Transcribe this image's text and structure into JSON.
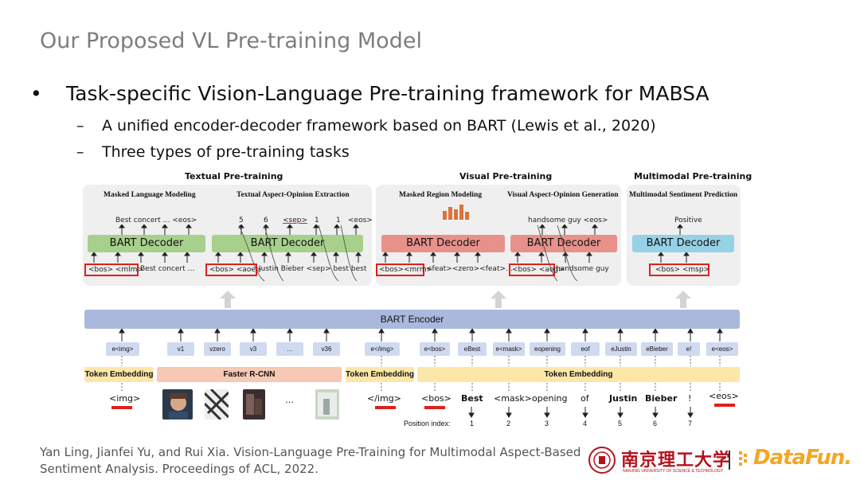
{
  "slide": {
    "title": "Our Proposed VL Pre-training Model",
    "bullet_main": "Task-specific Vision-Language Pre-training framework for MABSA",
    "sub_bullets": [
      "A unified encoder-decoder framework based on BART (Lewis et al., 2020)",
      "Three types of pre-training tasks"
    ],
    "bullet_marker": "•",
    "dash_marker": "–"
  },
  "diagram": {
    "sections": {
      "textual": "Textual Pre-training",
      "visual": "Visual Pre-training",
      "multimodal": "Multimodal Pre-training"
    },
    "tasks": {
      "mlm": "Masked Language Modeling",
      "taoe": "Textual Aspect-Opinion Extraction",
      "mrm": "Masked Region Modeling",
      "vaog": "Visual Aspect-Opinion Generation",
      "msp": "Multimodal Sentiment Prediction"
    },
    "decoder_label": "BART Decoder",
    "encoder_label": "BART Encoder",
    "mlm_out": "Best concert  …  <eos>",
    "mlm_in_box": "<bos>  <mlm>",
    "mlm_in_rest": "Best  concert  …",
    "taoe_out": [
      "5",
      "6",
      "<sep>",
      "1",
      "1",
      "<eos>"
    ],
    "taoe_in_box": "<bos> <aoe>",
    "taoe_in_rest": "Justin  Bieber  <sep>  best  best",
    "mrm_in_box": "<bos><mrm>",
    "mrm_in_rest": "<feat><zero><feat>…",
    "vaog_out": "handsome guy  <eos>",
    "vaog_in_box": "<bos> <aog>",
    "vaog_in_rest": "handsome guy",
    "msp_out": "Positive",
    "msp_in_box": "<bos>  <msp>",
    "embeddings": [
      "e<img>",
      "v1",
      "vzero",
      "v3",
      "…",
      "v36",
      "e</img>",
      "e<bos>",
      "eBest",
      "e<mask>",
      "eopening",
      "eof",
      "eJustin",
      "eBieber",
      "e!",
      "e<eos>"
    ],
    "token_embedding": "Token Embedding",
    "faster_rcnn": "Faster R-CNN",
    "inputs": {
      "img_open": "<img>",
      "ellipsis": "…",
      "img_close": "</img>",
      "words": [
        "<bos>",
        "Best",
        "<mask>",
        "opening",
        "of",
        "Justin",
        "Bieber",
        "!",
        "<eos>"
      ]
    },
    "position_label": "Position index:",
    "positions": [
      "1",
      "2",
      "3",
      "4",
      "5",
      "6",
      "7"
    ]
  },
  "footer": {
    "citation_line1": "Yan Ling, Jianfei Yu, and Rui Xia. Vision-Language Pre-Training for Multimodal Aspect-Based",
    "citation_line2": "Sentiment Analysis. Proceedings of ACL, 2022.",
    "university": "南京理工大学",
    "university_en": "NANJING UNIVERSITY OF SCIENCE & TECHNOLOGY",
    "brand": "DataFun."
  },
  "colors": {
    "decoder_green": "#a8d08d",
    "decoder_red": "#e8918b",
    "decoder_blue": "#97d1e6",
    "encoder": "#aab8de",
    "token_embedding": "#fde7a8",
    "faster_rcnn": "#f7c8b3",
    "highlight_red": "#e0201c",
    "brand_orange": "#f5a623",
    "university_red": "#b5121b"
  }
}
